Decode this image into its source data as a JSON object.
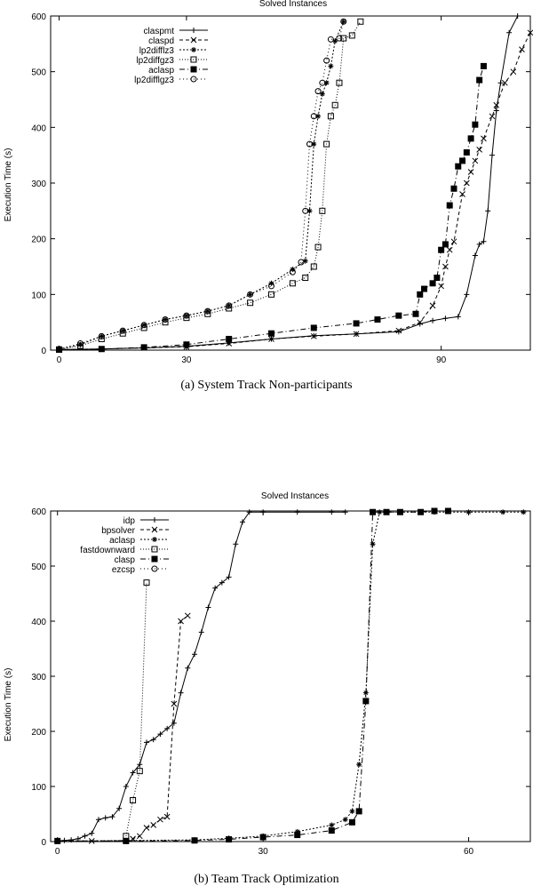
{
  "chart_data": [
    {
      "type": "line",
      "title": "Solved Instances",
      "caption": "(a) System Track Non-participants",
      "xlabel": "",
      "ylabel": "Execution Time (s)",
      "xlim": [
        -2,
        111
      ],
      "ylim": [
        0,
        600
      ],
      "xticks": [
        0,
        30,
        90
      ],
      "yticks": [
        0,
        100,
        200,
        300,
        400,
        500,
        600
      ],
      "grid": false,
      "legend_position": "top-left",
      "series": [
        {
          "name": "claspmt",
          "marker": "plus",
          "dash": "",
          "points": [
            [
              0,
              1
            ],
            [
              10,
              2
            ],
            [
              20,
              4
            ],
            [
              30,
              7
            ],
            [
              40,
              13
            ],
            [
              50,
              20
            ],
            [
              60,
              26
            ],
            [
              70,
              29
            ],
            [
              80,
              33
            ],
            [
              85,
              47
            ],
            [
              88,
              53
            ],
            [
              91,
              57
            ],
            [
              94,
              60
            ],
            [
              96,
              100
            ],
            [
              98,
              170
            ],
            [
              99,
              190
            ],
            [
              100,
              195
            ],
            [
              101,
              250
            ],
            [
              102,
              350
            ],
            [
              103,
              430
            ],
            [
              104,
              480
            ],
            [
              106,
              570
            ],
            [
              108,
              600
            ]
          ]
        },
        {
          "name": "claspd",
          "marker": "x",
          "dash": "4 3",
          "points": [
            [
              0,
              1
            ],
            [
              10,
              2
            ],
            [
              20,
              4
            ],
            [
              30,
              6
            ],
            [
              40,
              12
            ],
            [
              50,
              20
            ],
            [
              60,
              25
            ],
            [
              70,
              29
            ],
            [
              80,
              35
            ],
            [
              85,
              50
            ],
            [
              88,
              80
            ],
            [
              90,
              115
            ],
            [
              91,
              150
            ],
            [
              92,
              180
            ],
            [
              93,
              195
            ],
            [
              95,
              280
            ],
            [
              96,
              300
            ],
            [
              97,
              320
            ],
            [
              98,
              340
            ],
            [
              99,
              360
            ],
            [
              100,
              380
            ],
            [
              102,
              420
            ],
            [
              103,
              440
            ],
            [
              105,
              480
            ],
            [
              107,
              500
            ],
            [
              109,
              540
            ],
            [
              111,
              570
            ]
          ]
        },
        {
          "name": "lp2difflz3",
          "marker": "star",
          "dash": "2 2",
          "points": [
            [
              0,
              2
            ],
            [
              5,
              10
            ],
            [
              10,
              25
            ],
            [
              15,
              35
            ],
            [
              20,
              45
            ],
            [
              25,
              55
            ],
            [
              30,
              62
            ],
            [
              35,
              70
            ],
            [
              40,
              80
            ],
            [
              45,
              100
            ],
            [
              50,
              120
            ],
            [
              55,
              145
            ],
            [
              58,
              160
            ],
            [
              59,
              250
            ],
            [
              60,
              370
            ],
            [
              61,
              420
            ],
            [
              62,
              460
            ],
            [
              63,
              480
            ],
            [
              64,
              510
            ],
            [
              65,
              555
            ],
            [
              67,
              590
            ]
          ]
        },
        {
          "name": "lp2diffgz3",
          "marker": "square",
          "dash": "1 2",
          "points": [
            [
              0,
              1
            ],
            [
              5,
              8
            ],
            [
              10,
              20
            ],
            [
              15,
              30
            ],
            [
              20,
              40
            ],
            [
              25,
              50
            ],
            [
              30,
              58
            ],
            [
              35,
              65
            ],
            [
              40,
              75
            ],
            [
              45,
              85
            ],
            [
              50,
              100
            ],
            [
              55,
              120
            ],
            [
              58,
              130
            ],
            [
              60,
              150
            ],
            [
              61,
              185
            ],
            [
              62,
              250
            ],
            [
              63,
              370
            ],
            [
              64,
              420
            ],
            [
              65,
              440
            ],
            [
              66,
              480
            ],
            [
              67,
              560
            ],
            [
              69,
              565
            ],
            [
              71,
              590
            ]
          ]
        },
        {
          "name": "aclasp",
          "marker": "fsquare",
          "dash": "6 3 1 3",
          "points": [
            [
              0,
              1
            ],
            [
              10,
              2
            ],
            [
              20,
              5
            ],
            [
              30,
              10
            ],
            [
              40,
              20
            ],
            [
              50,
              30
            ],
            [
              60,
              40
            ],
            [
              70,
              48
            ],
            [
              75,
              55
            ],
            [
              80,
              62
            ],
            [
              84,
              65
            ],
            [
              85,
              100
            ],
            [
              86,
              110
            ],
            [
              88,
              120
            ],
            [
              89,
              130
            ],
            [
              90,
              180
            ],
            [
              91,
              190
            ],
            [
              92,
              260
            ],
            [
              93,
              290
            ],
            [
              94,
              330
            ],
            [
              95,
              340
            ],
            [
              96,
              355
            ],
            [
              97,
              380
            ],
            [
              98,
              405
            ],
            [
              99,
              485
            ],
            [
              100,
              510
            ]
          ]
        },
        {
          "name": "lp2difflgz3",
          "marker": "circle",
          "dash": "1 3",
          "points": [
            [
              0,
              2
            ],
            [
              5,
              12
            ],
            [
              10,
              25
            ],
            [
              15,
              35
            ],
            [
              20,
              45
            ],
            [
              25,
              55
            ],
            [
              30,
              62
            ],
            [
              35,
              70
            ],
            [
              40,
              80
            ],
            [
              45,
              100
            ],
            [
              50,
              115
            ],
            [
              55,
              140
            ],
            [
              57,
              158
            ],
            [
              58,
              250
            ],
            [
              59,
              370
            ],
            [
              60,
              420
            ],
            [
              61,
              465
            ],
            [
              62,
              480
            ],
            [
              63,
              520
            ],
            [
              64,
              558
            ],
            [
              66,
              560
            ],
            [
              67,
              590
            ]
          ]
        }
      ]
    },
    {
      "type": "line",
      "title": "Solved Instances",
      "caption": "(b) Team Track Optimization",
      "xlabel": "",
      "ylabel": "Execution Time (s)",
      "xlim": [
        -1,
        69
      ],
      "ylim": [
        0,
        600
      ],
      "xticks": [
        0,
        30,
        60
      ],
      "yticks": [
        0,
        100,
        200,
        300,
        400,
        500,
        600
      ],
      "grid": false,
      "legend_position": "top-left",
      "series": [
        {
          "name": "idp",
          "marker": "plus",
          "dash": "",
          "points": [
            [
              0,
              1
            ],
            [
              1,
              2
            ],
            [
              2,
              3
            ],
            [
              3,
              5
            ],
            [
              4,
              10
            ],
            [
              5,
              15
            ],
            [
              6,
              40
            ],
            [
              7,
              43
            ],
            [
              8,
              45
            ],
            [
              9,
              60
            ],
            [
              10,
              100
            ],
            [
              11,
              125
            ],
            [
              12,
              140
            ],
            [
              13,
              180
            ],
            [
              14,
              185
            ],
            [
              15,
              195
            ],
            [
              16,
              205
            ],
            [
              17,
              215
            ],
            [
              18,
              270
            ],
            [
              19,
              315
            ],
            [
              20,
              340
            ],
            [
              21,
              380
            ],
            [
              22,
              425
            ],
            [
              23,
              460
            ],
            [
              24,
              470
            ],
            [
              25,
              480
            ],
            [
              26,
              540
            ],
            [
              27,
              580
            ],
            [
              28,
              598
            ],
            [
              30,
              598
            ],
            [
              35,
              598
            ],
            [
              40,
              598
            ],
            [
              42,
              598
            ]
          ]
        },
        {
          "name": "bpsolver",
          "marker": "x",
          "dash": "4 3",
          "points": [
            [
              0,
              1
            ],
            [
              5,
              1
            ],
            [
              10,
              2
            ],
            [
              11,
              5
            ],
            [
              12,
              10
            ],
            [
              13,
              25
            ],
            [
              14,
              30
            ],
            [
              15,
              40
            ],
            [
              16,
              45
            ],
            [
              17,
              250
            ],
            [
              18,
              400
            ],
            [
              19,
              410
            ]
          ]
        },
        {
          "name": "aclasp",
          "marker": "star",
          "dash": "2 2",
          "points": [
            [
              0,
              1
            ],
            [
              10,
              2
            ],
            [
              20,
              3
            ],
            [
              25,
              6
            ],
            [
              30,
              10
            ],
            [
              35,
              18
            ],
            [
              40,
              30
            ],
            [
              42,
              40
            ],
            [
              43,
              55
            ],
            [
              44,
              140
            ],
            [
              45,
              270
            ],
            [
              46,
              540
            ],
            [
              47,
              598
            ],
            [
              50,
              598
            ],
            [
              55,
              598
            ],
            [
              60,
              598
            ],
            [
              65,
              598
            ],
            [
              68,
              598
            ]
          ]
        },
        {
          "name": "fastdownward",
          "marker": "square",
          "dash": "1 2",
          "points": [
            [
              10,
              10
            ],
            [
              11,
              75
            ],
            [
              12,
              128
            ],
            [
              13,
              470
            ]
          ]
        },
        {
          "name": "clasp",
          "marker": "fsquare",
          "dash": "6 3 1 3",
          "points": [
            [
              0,
              1
            ],
            [
              10,
              1
            ],
            [
              20,
              2
            ],
            [
              25,
              4
            ],
            [
              30,
              8
            ],
            [
              35,
              12
            ],
            [
              40,
              20
            ],
            [
              43,
              35
            ],
            [
              44,
              55
            ],
            [
              45,
              255
            ],
            [
              46,
              598
            ],
            [
              48,
              598
            ],
            [
              50,
              598
            ],
            [
              53,
              598
            ],
            [
              55,
              600
            ],
            [
              57,
              600
            ]
          ]
        },
        {
          "name": "ezcsp",
          "marker": "circle",
          "dash": "1 3",
          "points": []
        }
      ]
    }
  ]
}
